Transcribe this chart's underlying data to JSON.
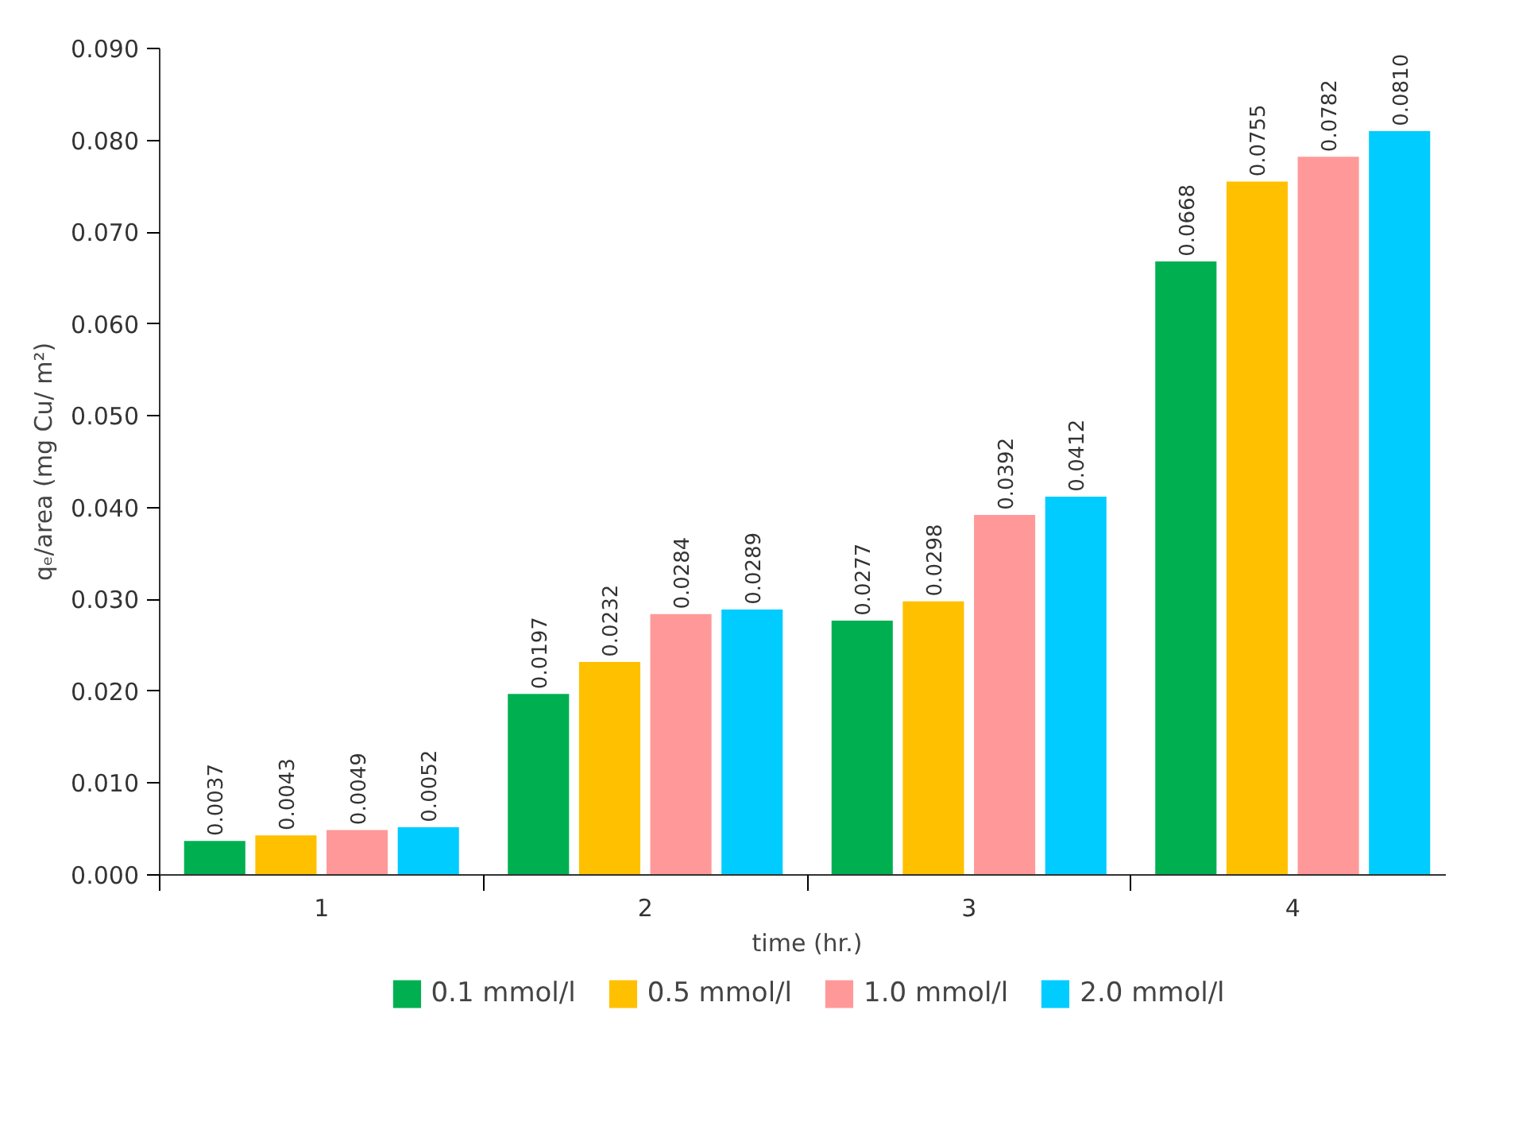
{
  "chart_data": {
    "type": "bar",
    "xlabel": "time (hr.)",
    "ylabel": "qₑ/area (mg Cu/ m²)",
    "categories": [
      "1",
      "2",
      "3",
      "4"
    ],
    "series": [
      {
        "name": "0.1 mmol/l",
        "color": "#00b050",
        "values": [
          0.0037,
          0.0197,
          0.0277,
          0.0668
        ],
        "value_labels": [
          "0.0037",
          "0.0197",
          "0.0277",
          "0.0668"
        ]
      },
      {
        "name": "0.5 mmol/l",
        "color": "#ffc000",
        "values": [
          0.0043,
          0.0232,
          0.0298,
          0.0755
        ],
        "value_labels": [
          "0.0043",
          "0.0232",
          "0.0298",
          "0.0755"
        ]
      },
      {
        "name": "1.0 mmol/l",
        "color": "#ff9999",
        "values": [
          0.0049,
          0.0284,
          0.0392,
          0.0782
        ],
        "value_labels": [
          "0.0049",
          "0.0284",
          "0.0392",
          "0.0782"
        ]
      },
      {
        "name": "2.0 mmol/l",
        "color": "#00ccff",
        "values": [
          0.0052,
          0.0289,
          0.0412,
          0.081
        ],
        "value_labels": [
          "0.0052",
          "0.0289",
          "0.0412",
          "0.0810"
        ]
      }
    ],
    "ylim": [
      0,
      0.09
    ],
    "yticks": [
      {
        "value": 0,
        "label": "0.000"
      },
      {
        "value": 0.01,
        "label": "0.010"
      },
      {
        "value": 0.02,
        "label": "0.020"
      },
      {
        "value": 0.03,
        "label": "0.030"
      },
      {
        "value": 0.04,
        "label": "0.040"
      },
      {
        "value": 0.05,
        "label": "0.050"
      },
      {
        "value": 0.06,
        "label": "0.060"
      },
      {
        "value": 0.07,
        "label": "0.070"
      },
      {
        "value": 0.08,
        "label": "0.080"
      },
      {
        "value": 0.09,
        "label": "0.090"
      }
    ],
    "grid": false,
    "legend": "bottom"
  }
}
